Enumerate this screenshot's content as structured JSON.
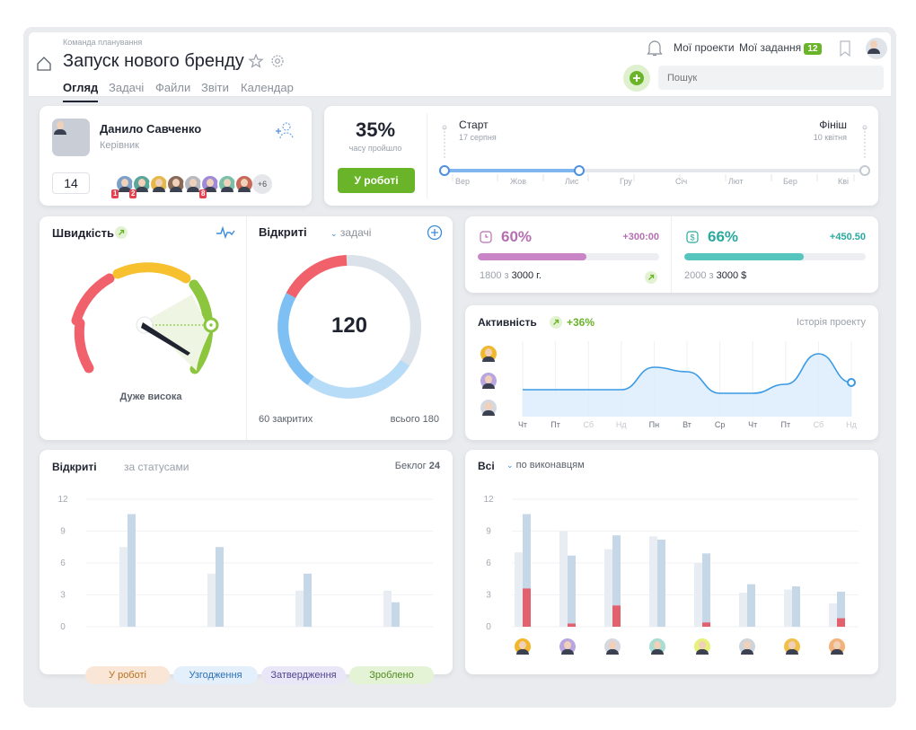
{
  "header": {
    "team": "Команда планування",
    "title": "Запуск нового бренду",
    "tabs": [
      "Огляд",
      "Задачі",
      "Файли",
      "Звіти",
      "Календар"
    ],
    "my_projects": "Мої проекти",
    "my_tasks": "Мої задання",
    "my_tasks_count": "12",
    "search_placeholder": "Пошук"
  },
  "user_card": {
    "name": "Данило Савченко",
    "role": "Керівник",
    "count": "14",
    "team_more": "+6",
    "badges": [
      "1",
      "2",
      "8"
    ]
  },
  "timeline": {
    "percent": "35%",
    "percent_label": "часу пройшло",
    "status_button": "У роботі",
    "progress": 0.35,
    "start_label": "Старт",
    "start_date": "17 серпня",
    "end_label": "Фініш",
    "end_date": "10 квітня",
    "months": [
      "Вер",
      "Жов",
      "Лис",
      "Гру",
      "Січ",
      "Лют",
      "Бер",
      "Кві"
    ]
  },
  "speed": {
    "title": "Швидкість",
    "verdict": "Дуже висока",
    "open_title": "Відкриті",
    "open_filter": "задачі",
    "total": "120",
    "closed_label": "60 закритих",
    "all_label": "всього 180"
  },
  "metrics": [
    {
      "value": "60%",
      "delta": "+300:00",
      "used": "1800 з",
      "total": "3000 г.",
      "color": "#c985c6",
      "fill": 0.6
    },
    {
      "value": "66%",
      "delta": "+450.50",
      "used": "2000 з",
      "total": "3000 $",
      "color": "#56c5bd",
      "fill": 0.66
    }
  ],
  "activity": {
    "title": "Активність",
    "change": "+36%",
    "history_link": "Історія проекту",
    "days": [
      "Чт",
      "Пт",
      "Сб",
      "Нд",
      "Пн",
      "Вт",
      "Ср",
      "Чт",
      "Пт",
      "Сб",
      "Нд"
    ],
    "chart_data": {
      "type": "area",
      "x": [
        "Чт",
        "Пт",
        "Сб",
        "Нд",
        "Пн",
        "Вт",
        "Ср",
        "Чт",
        "Пт",
        "Сб",
        "Нд"
      ],
      "values": [
        3,
        3,
        3,
        3,
        5.5,
        5,
        2.6,
        2.6,
        3.6,
        7,
        3.8
      ]
    }
  },
  "status_chart": {
    "title": "Відкриті",
    "subtitle": "за статусами",
    "backlog_label": "Беклог",
    "backlog_value": "24",
    "legend": [
      "У роботі",
      "Узгодження",
      "Затвердження",
      "Зроблено"
    ],
    "chart_data": {
      "type": "bar",
      "y_ticks": [
        "12",
        "9",
        "6",
        "3",
        "0"
      ],
      "ylim": [
        0,
        12
      ],
      "categories": [
        "У роботі",
        "Узгодження",
        "Затвердження",
        "Зроблено"
      ],
      "series": [
        {
          "values": [
            7.5,
            5,
            3.4,
            3.4
          ]
        },
        {
          "values": [
            10.6,
            7.5,
            5,
            2.3
          ]
        }
      ]
    }
  },
  "assignee_chart": {
    "title": "Всі",
    "filter": "по виконавцям",
    "chart_data": {
      "type": "bar",
      "y_ticks": [
        "12",
        "9",
        "6",
        "3",
        "0"
      ],
      "ylim": [
        0,
        12
      ],
      "series": [
        {
          "values": [
            7,
            9,
            7.3,
            8.5,
            6,
            3.2,
            3.5,
            2.2
          ]
        },
        {
          "values": [
            10.6,
            6.7,
            8.6,
            8.2,
            6.9,
            4,
            3.8,
            3.3
          ]
        },
        {
          "values": [
            3.6,
            0.3,
            2,
            0,
            0.4,
            0,
            0,
            0.8
          ]
        }
      ]
    }
  }
}
